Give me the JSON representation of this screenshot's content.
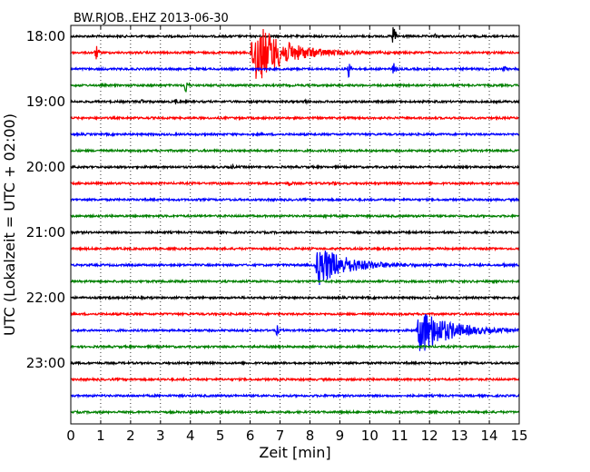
{
  "chart_data": {
    "type": "line",
    "title": "BW.RJOB..EHZ 2013-06-30",
    "xlabel": "Zeit  [min]",
    "ylabel": "UTC (Lokalzeit = UTC + 02:00)",
    "xlim": [
      0,
      15
    ],
    "x_ticks": [
      "0",
      "1",
      "2",
      "3",
      "4",
      "5",
      "6",
      "7",
      "8",
      "9",
      "10",
      "11",
      "12",
      "13",
      "14",
      "15"
    ],
    "y_ticks": [
      "18:00",
      "19:00",
      "20:00",
      "21:00",
      "22:00",
      "23:00"
    ],
    "grid": "vertical dotted",
    "trace_colors": [
      "#000000",
      "#ff0000",
      "#0000ff",
      "#008000"
    ],
    "traces": [
      {
        "start": "18:00",
        "events": [
          {
            "t": 10.8,
            "amp": 18
          },
          {
            "t": 12.2,
            "amp": 2
          }
        ]
      },
      {
        "start": "18:15",
        "events": [
          {
            "t": 0.85,
            "amp": 9
          },
          {
            "t": 6.0,
            "amp": 36
          }
        ]
      },
      {
        "start": "18:30",
        "events": [
          {
            "t": 9.3,
            "amp": 10
          },
          {
            "t": 10.8,
            "amp": 7
          },
          {
            "t": 14.5,
            "amp": 4
          }
        ]
      },
      {
        "start": "18:45",
        "events": [
          {
            "t": 3.85,
            "amp": 11
          }
        ]
      },
      {
        "start": "19:00",
        "events": [
          {
            "t": 2.4,
            "amp": 3
          },
          {
            "t": 3.5,
            "amp": 3
          },
          {
            "t": 7.8,
            "amp": 4
          }
        ]
      },
      {
        "start": "19:15",
        "events": []
      },
      {
        "start": "19:30",
        "events": []
      },
      {
        "start": "19:45",
        "events": []
      },
      {
        "start": "20:00",
        "events": [
          {
            "t": 5.4,
            "amp": 2
          }
        ]
      },
      {
        "start": "20:15",
        "events": [
          {
            "t": 7.3,
            "amp": 3
          },
          {
            "t": 8.8,
            "amp": 3
          }
        ]
      },
      {
        "start": "20:30",
        "events": []
      },
      {
        "start": "20:45",
        "events": [
          {
            "t": 8.5,
            "amp": 2
          }
        ]
      },
      {
        "start": "21:00",
        "events": []
      },
      {
        "start": "21:15",
        "events": []
      },
      {
        "start": "21:30",
        "events": [
          {
            "t": 8.15,
            "amp": 22
          },
          {
            "t": 14.5,
            "amp": 2
          }
        ]
      },
      {
        "start": "21:45",
        "events": []
      },
      {
        "start": "22:00",
        "events": [
          {
            "t": 1.3,
            "amp": 1
          }
        ]
      },
      {
        "start": "22:15",
        "events": []
      },
      {
        "start": "22:30",
        "events": [
          {
            "t": 6.9,
            "amp": 6
          },
          {
            "t": 11.55,
            "amp": 26
          }
        ]
      },
      {
        "start": "22:45",
        "events": []
      },
      {
        "start": "23:00",
        "events": []
      },
      {
        "start": "23:15",
        "events": []
      },
      {
        "start": "23:30",
        "events": []
      },
      {
        "start": "23:45",
        "events": []
      }
    ]
  }
}
